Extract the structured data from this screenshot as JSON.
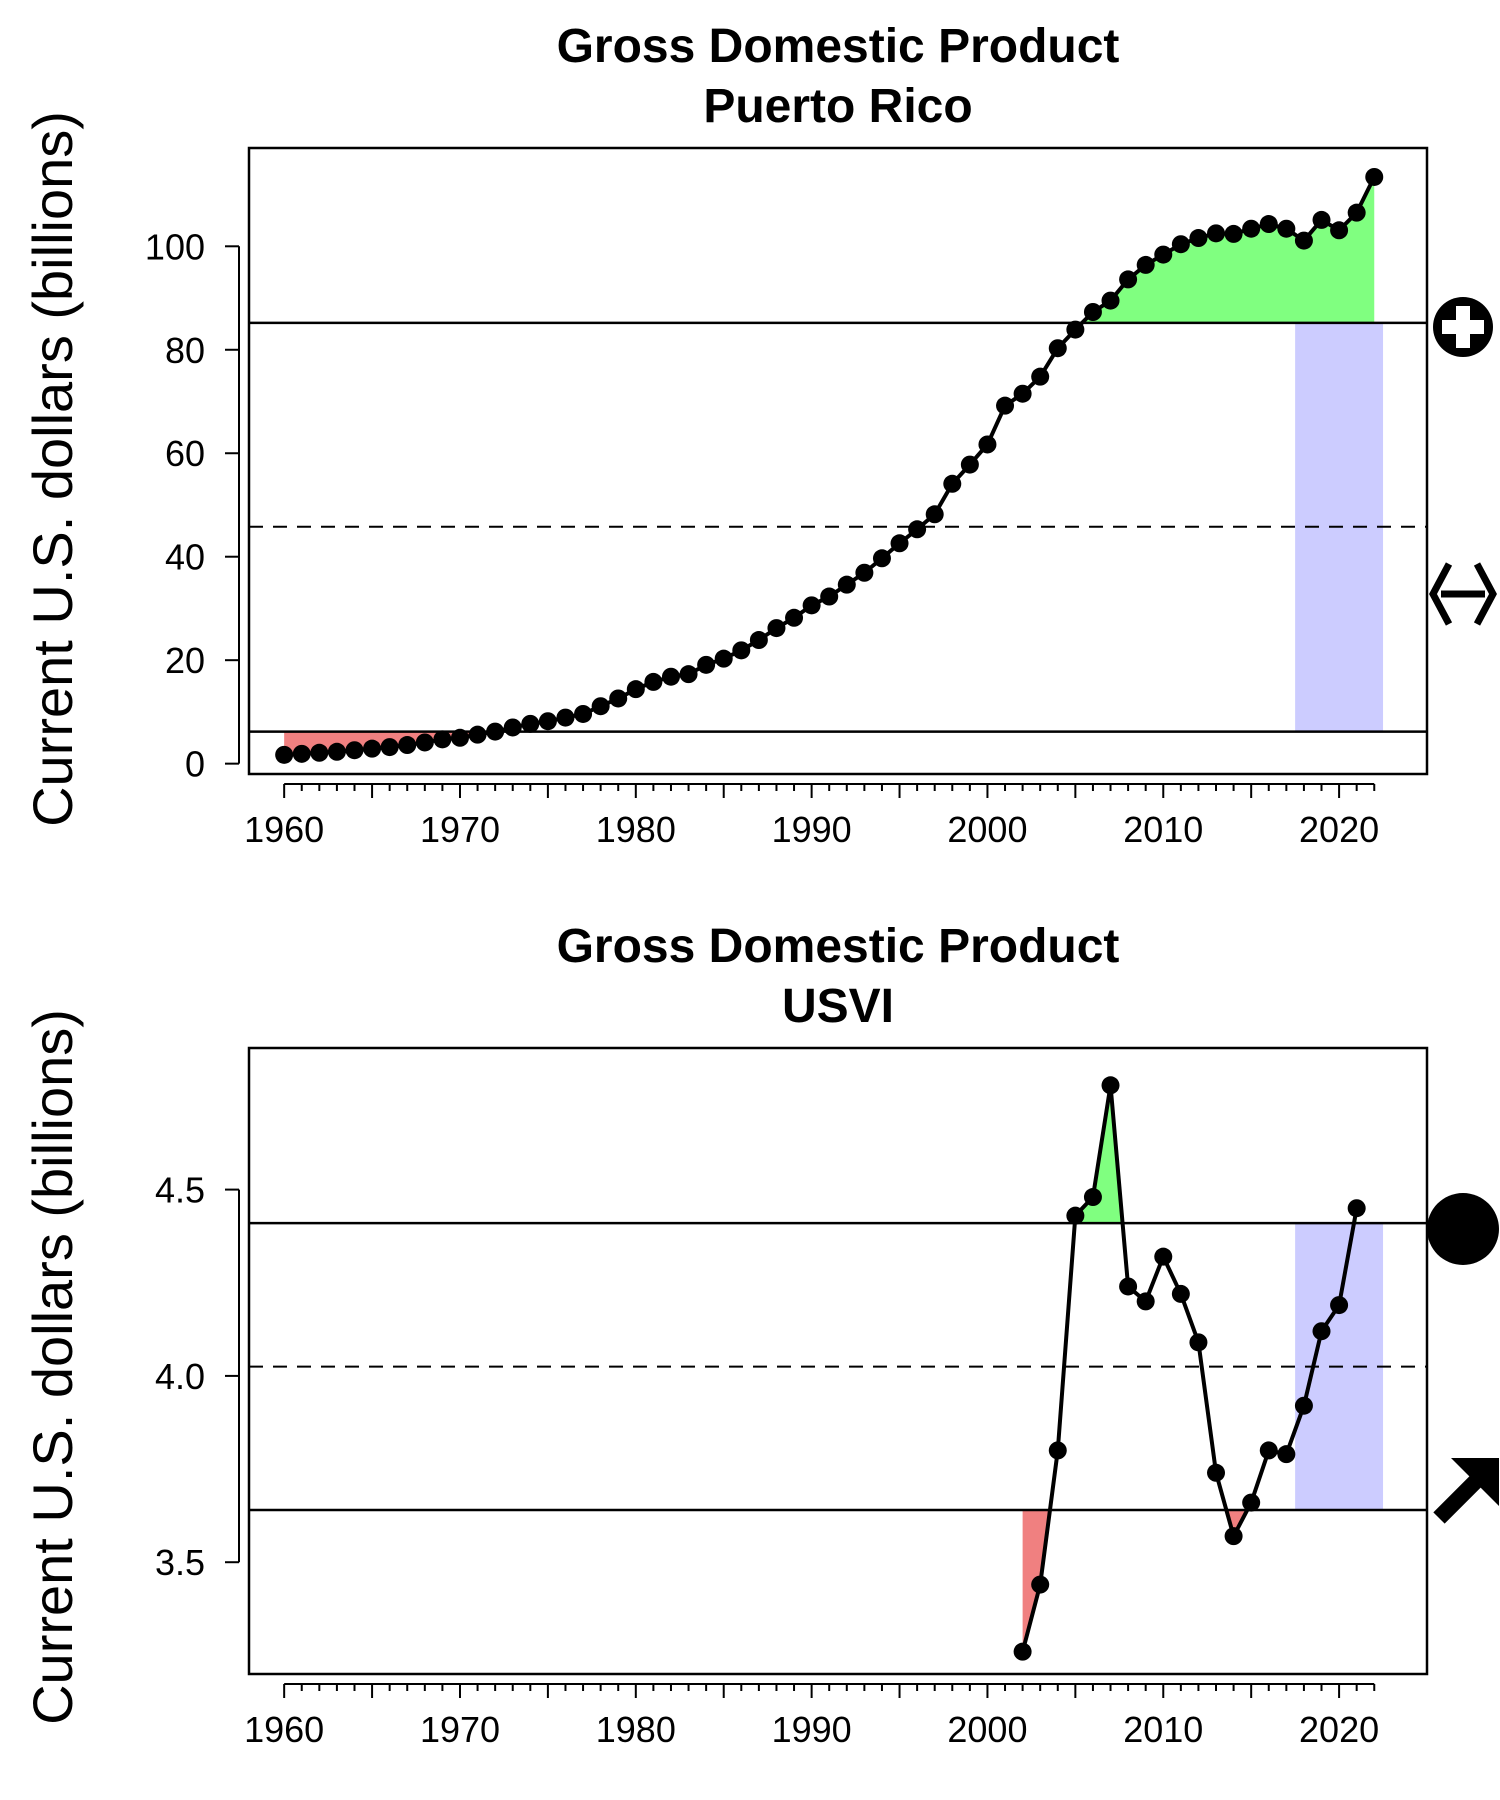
{
  "chart_data": [
    {
      "type": "line",
      "title": "Gross Domestic Product",
      "subtitle": "Puerto Rico",
      "xlabel": "",
      "ylabel": "Current U.S. dollars (billions)",
      "xlim": [
        1958,
        2025
      ],
      "ylim": [
        -2,
        119
      ],
      "x_ticks": [
        1960,
        1970,
        1980,
        1990,
        2000,
        2010,
        2020
      ],
      "y_ticks": [
        0,
        20,
        40,
        60,
        80,
        100
      ],
      "grid": false,
      "legend": "none",
      "series": [
        {
          "x": [
            1960,
            1961,
            1962,
            1963,
            1964,
            1965,
            1966,
            1967,
            1968,
            1969,
            1970,
            1971,
            1972,
            1973,
            1974,
            1975,
            1976,
            1977,
            1978,
            1979,
            1980,
            1981,
            1982,
            1983,
            1984,
            1985,
            1986,
            1987,
            1988,
            1989,
            1990,
            1991,
            1992,
            1993,
            1994,
            1995,
            1996,
            1997,
            1998,
            1999,
            2000,
            2001,
            2002,
            2003,
            2004,
            2005,
            2006,
            2007,
            2008,
            2009,
            2010,
            2011,
            2012,
            2013,
            2014,
            2015,
            2016,
            2017,
            2018,
            2019,
            2020,
            2021,
            2022
          ],
          "values": [
            1.7,
            1.9,
            2.1,
            2.3,
            2.6,
            2.9,
            3.2,
            3.6,
            4.1,
            4.7,
            5.0,
            5.6,
            6.2,
            7.0,
            7.7,
            8.2,
            8.9,
            9.6,
            11.1,
            12.6,
            14.4,
            15.8,
            16.8,
            17.3,
            19.1,
            20.3,
            21.9,
            23.9,
            26.2,
            28.2,
            30.6,
            32.3,
            34.6,
            36.9,
            39.7,
            42.6,
            45.3,
            48.2,
            54.1,
            57.8,
            61.7,
            69.2,
            71.5,
            74.8,
            80.3,
            83.9,
            87.3,
            89.5,
            93.6,
            96.4,
            98.4,
            100.4,
            101.6,
            102.5,
            102.4,
            103.4,
            104.3,
            103.4,
            101.1,
            105.1,
            103.1,
            106.5,
            113.4
          ]
        }
      ],
      "reference_lines": {
        "upper": 85.2,
        "mean": 45.8,
        "lower": 6.2
      },
      "highlight_window": {
        "from": 2017.5,
        "to": 2022.5
      },
      "trend_symbols": {
        "mean": "plus-in-circle",
        "trend": "double-arrow"
      },
      "colors": {
        "above": "#80FF80",
        "below": "#F08080",
        "window": "#CCCCFF",
        "line": "#000000"
      }
    },
    {
      "type": "line",
      "title": "Gross Domestic Product",
      "subtitle": "USVI",
      "xlabel": "",
      "ylabel": "Current U.S. dollars (billions)",
      "xlim": [
        1958,
        2025
      ],
      "ylim": [
        3.2,
        4.88
      ],
      "x_ticks": [
        1960,
        1970,
        1980,
        1990,
        2000,
        2010,
        2020
      ],
      "y_ticks": [
        3.5,
        4.0,
        4.5
      ],
      "y_tick_labels": [
        "3.5",
        "4.0",
        "4.5"
      ],
      "grid": false,
      "legend": "none",
      "series": [
        {
          "x": [
            2002,
            2003,
            2004,
            2005,
            2006,
            2007,
            2008,
            2009,
            2010,
            2011,
            2012,
            2013,
            2014,
            2015,
            2016,
            2017,
            2018,
            2019,
            2020,
            2021
          ],
          "values": [
            3.26,
            3.44,
            3.8,
            4.43,
            4.48,
            4.78,
            4.24,
            4.2,
            4.32,
            4.22,
            4.09,
            3.74,
            3.57,
            3.66,
            3.8,
            3.79,
            3.92,
            4.12,
            4.19,
            4.45
          ]
        }
      ],
      "reference_lines": {
        "upper": 4.41,
        "mean": 4.025,
        "lower": 3.64
      },
      "highlight_window": {
        "from": 2017.5,
        "to": 2022.5
      },
      "trend_symbols": {
        "mean": "filled-circle",
        "trend": "up-right-arrow"
      },
      "colors": {
        "above": "#80FF80",
        "below": "#F08080",
        "window": "#CCCCFF",
        "line": "#000000"
      }
    }
  ]
}
